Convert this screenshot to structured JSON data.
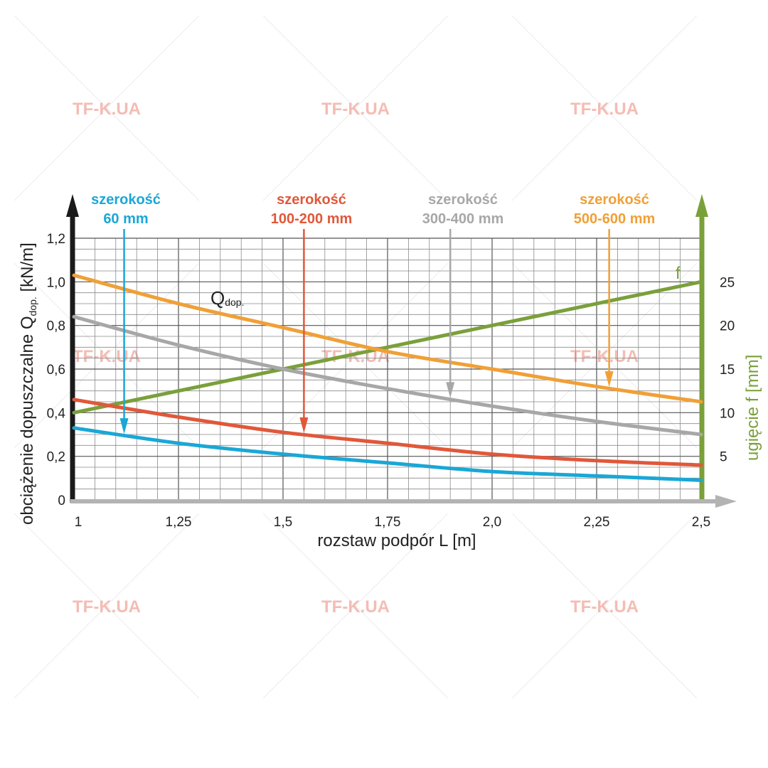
{
  "watermark": "TF-K.UA",
  "chart_data": {
    "type": "line",
    "xlabel": "rozstaw podpór L [m]",
    "ylabel_main": "obciążenie dopuszczalne Q",
    "ylabel_sub": "dop.",
    "ylabel_unit": " [kN/m]",
    "y2label": "ugięcie f [mm]",
    "xlim": [
      1,
      2.5
    ],
    "ylim": [
      0,
      1.2
    ],
    "y2lim": [
      0,
      25
    ],
    "x_ticks": [
      1,
      1.25,
      1.5,
      1.75,
      2.0,
      2.25,
      2.5
    ],
    "x_tick_labels": [
      "1",
      "1,25",
      "1,5",
      "1,75",
      "2,0",
      "2,25",
      "2,5"
    ],
    "y_ticks": [
      0,
      0.2,
      0.4,
      0.6,
      0.8,
      1.0,
      1.2
    ],
    "y_tick_labels": [
      "0",
      "0,2",
      "0,4",
      "0,6",
      "0,8",
      "1,0",
      "1,2"
    ],
    "y2_ticks": [
      5,
      10,
      15,
      20,
      25
    ],
    "y2_tick_labels": [
      "5",
      "10",
      "15",
      "20",
      "25"
    ],
    "grid": true,
    "series": [
      {
        "line1": "szerokość",
        "line2": "60 mm",
        "color": "#1aa7d6",
        "x": [
          1.0,
          1.25,
          1.5,
          1.75,
          2.0,
          2.25,
          2.5
        ],
        "y": [
          0.33,
          0.26,
          0.21,
          0.17,
          0.13,
          0.11,
          0.09
        ],
        "arrow_x": 1.12
      },
      {
        "line1": "szerokość",
        "line2": "100-200 mm",
        "color": "#e0583a",
        "x": [
          1.0,
          1.25,
          1.5,
          1.75,
          2.0,
          2.25,
          2.5
        ],
        "y": [
          0.46,
          0.38,
          0.31,
          0.26,
          0.21,
          0.18,
          0.16
        ],
        "arrow_x": 1.55
      },
      {
        "line1": "szerokość",
        "line2": "300-400 mm",
        "color": "#a7a7a7",
        "x": [
          1.0,
          1.25,
          1.5,
          1.75,
          2.0,
          2.25,
          2.5
        ],
        "y": [
          0.84,
          0.71,
          0.6,
          0.51,
          0.43,
          0.36,
          0.3
        ],
        "arrow_x": 1.9
      },
      {
        "line1": "szerokość",
        "line2": "500-600 mm",
        "color": "#f0a037",
        "x": [
          1.0,
          1.25,
          1.5,
          1.75,
          2.0,
          2.25,
          2.5
        ],
        "y": [
          1.03,
          0.9,
          0.79,
          0.68,
          0.6,
          0.52,
          0.45
        ],
        "arrow_x": 2.28
      }
    ],
    "deflection": {
      "name": "f",
      "color": "#7aa03a",
      "x": [
        1.0,
        2.5
      ],
      "f": [
        10,
        25
      ]
    },
    "q_label": "Q",
    "q_label_sub": "dop."
  }
}
